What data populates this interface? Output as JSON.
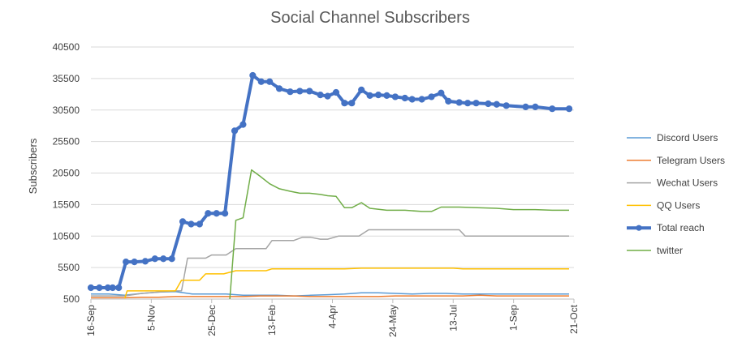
{
  "chart_data": {
    "type": "line",
    "title": "Social Channel Subscribers",
    "ylabel": "Subscribers",
    "xlabel": "",
    "x_tick_labels": [
      "16-Sep",
      "5-Nov",
      "25-Dec",
      "13-Feb",
      "4-Apr",
      "24-May",
      "13-Jul",
      "1-Sep",
      "21-Oct"
    ],
    "y_tick_labels": [
      "500",
      "5500",
      "10500",
      "15500",
      "20500",
      "25500",
      "30500",
      "35500",
      "40500"
    ],
    "xlim_days": [
      0,
      400
    ],
    "ylim": [
      500,
      40500
    ],
    "legend_position": "right",
    "series": [
      {
        "name": "Discord Users",
        "color": "#5b9bd5",
        "width": 1.5,
        "markers": false,
        "points": [
          [
            0,
            1300
          ],
          [
            15,
            1300
          ],
          [
            28,
            1100
          ],
          [
            42,
            1400
          ],
          [
            56,
            1600
          ],
          [
            70,
            1700
          ],
          [
            84,
            1300
          ],
          [
            98,
            1300
          ],
          [
            112,
            1300
          ],
          [
            126,
            1100
          ],
          [
            140,
            1100
          ],
          [
            154,
            1100
          ],
          [
            168,
            1000
          ],
          [
            182,
            1100
          ],
          [
            196,
            1200
          ],
          [
            210,
            1300
          ],
          [
            224,
            1500
          ],
          [
            238,
            1500
          ],
          [
            252,
            1400
          ],
          [
            266,
            1300
          ],
          [
            280,
            1400
          ],
          [
            294,
            1400
          ],
          [
            308,
            1300
          ],
          [
            322,
            1300
          ],
          [
            336,
            1300
          ],
          [
            350,
            1300
          ],
          [
            364,
            1300
          ],
          [
            378,
            1300
          ],
          [
            396,
            1300
          ]
        ]
      },
      {
        "name": "Telegram Users",
        "color": "#ed7d31",
        "width": 1.5,
        "markers": false,
        "points": [
          [
            0,
            700
          ],
          [
            28,
            700
          ],
          [
            42,
            800
          ],
          [
            56,
            800
          ],
          [
            70,
            900
          ],
          [
            84,
            900
          ],
          [
            98,
            900
          ],
          [
            112,
            900
          ],
          [
            126,
            900
          ],
          [
            140,
            1000
          ],
          [
            154,
            1000
          ],
          [
            168,
            1000
          ],
          [
            182,
            900
          ],
          [
            196,
            900
          ],
          [
            210,
            900
          ],
          [
            224,
            900
          ],
          [
            238,
            900
          ],
          [
            252,
            1000
          ],
          [
            266,
            1000
          ],
          [
            280,
            1000
          ],
          [
            294,
            1000
          ],
          [
            308,
            1000
          ],
          [
            322,
            1100
          ],
          [
            336,
            1000
          ],
          [
            350,
            1000
          ],
          [
            364,
            1000
          ],
          [
            378,
            1000
          ],
          [
            396,
            1000
          ]
        ]
      },
      {
        "name": "Wechat Users",
        "color": "#a5a5a5",
        "width": 1.5,
        "markers": false,
        "points": [
          [
            0,
            1000
          ],
          [
            28,
            1000
          ],
          [
            42,
            1400
          ],
          [
            56,
            1600
          ],
          [
            70,
            1800
          ],
          [
            75,
            1800
          ],
          [
            80,
            7000
          ],
          [
            88,
            7000
          ],
          [
            95,
            7000
          ],
          [
            100,
            7500
          ],
          [
            112,
            7500
          ],
          [
            120,
            8500
          ],
          [
            130,
            8500
          ],
          [
            145,
            8500
          ],
          [
            150,
            9800
          ],
          [
            168,
            9800
          ],
          [
            175,
            10300
          ],
          [
            182,
            10300
          ],
          [
            190,
            10000
          ],
          [
            196,
            10000
          ],
          [
            205,
            10500
          ],
          [
            222,
            10500
          ],
          [
            230,
            11500
          ],
          [
            252,
            11500
          ],
          [
            290,
            11500
          ],
          [
            305,
            11500
          ],
          [
            310,
            10500
          ],
          [
            330,
            10500
          ],
          [
            350,
            10500
          ],
          [
            396,
            10500
          ]
        ]
      },
      {
        "name": "QQ Users",
        "color": "#ffc000",
        "width": 1.5,
        "markers": false,
        "points": [
          [
            28,
            600
          ],
          [
            30,
            1800
          ],
          [
            42,
            1800
          ],
          [
            56,
            1800
          ],
          [
            70,
            1800
          ],
          [
            75,
            3500
          ],
          [
            84,
            3500
          ],
          [
            90,
            3500
          ],
          [
            95,
            4500
          ],
          [
            110,
            4500
          ],
          [
            120,
            5000
          ],
          [
            145,
            5000
          ],
          [
            150,
            5300
          ],
          [
            168,
            5300
          ],
          [
            182,
            5300
          ],
          [
            196,
            5300
          ],
          [
            210,
            5300
          ],
          [
            224,
            5400
          ],
          [
            252,
            5400
          ],
          [
            280,
            5400
          ],
          [
            300,
            5400
          ],
          [
            308,
            5300
          ],
          [
            322,
            5300
          ],
          [
            336,
            5300
          ],
          [
            350,
            5300
          ],
          [
            364,
            5300
          ],
          [
            378,
            5300
          ],
          [
            396,
            5300
          ]
        ]
      },
      {
        "name": "Total reach",
        "color": "#4472c4",
        "width": 4,
        "markers": true,
        "points": [
          [
            0,
            2300
          ],
          [
            7,
            2300
          ],
          [
            14,
            2300
          ],
          [
            18,
            2300
          ],
          [
            23,
            2300
          ],
          [
            29,
            6400
          ],
          [
            36,
            6400
          ],
          [
            45,
            6500
          ],
          [
            53,
            6900
          ],
          [
            60,
            6900
          ],
          [
            67,
            6900
          ],
          [
            76,
            12800
          ],
          [
            83,
            12400
          ],
          [
            90,
            12400
          ],
          [
            97,
            14100
          ],
          [
            104,
            14100
          ],
          [
            111,
            14100
          ],
          [
            119,
            27200
          ],
          [
            126,
            28200
          ],
          [
            134,
            36000
          ],
          [
            141,
            35000
          ],
          [
            148,
            35000
          ],
          [
            156,
            33900
          ],
          [
            165,
            33400
          ],
          [
            173,
            33500
          ],
          [
            181,
            33500
          ],
          [
            190,
            32900
          ],
          [
            196,
            32700
          ],
          [
            203,
            33300
          ],
          [
            210,
            31600
          ],
          [
            216,
            31600
          ],
          [
            224,
            33700
          ],
          [
            231,
            32800
          ],
          [
            238,
            32900
          ],
          [
            245,
            32800
          ],
          [
            252,
            32600
          ],
          [
            260,
            32400
          ],
          [
            266,
            32200
          ],
          [
            274,
            32200
          ],
          [
            282,
            32600
          ],
          [
            290,
            33200
          ],
          [
            296,
            31900
          ],
          [
            305,
            31700
          ],
          [
            312,
            31600
          ],
          [
            319,
            31600
          ],
          [
            329,
            31500
          ],
          [
            336,
            31400
          ],
          [
            344,
            31200
          ],
          [
            360,
            31000
          ],
          [
            368,
            31000
          ],
          [
            382,
            30700
          ],
          [
            396,
            30700
          ]
        ]
      },
      {
        "name": "twitter",
        "color": "#70ad47",
        "width": 1.5,
        "markers": false,
        "points": [
          [
            115,
            500
          ],
          [
            120,
            13000
          ],
          [
            126,
            13400
          ],
          [
            133,
            21000
          ],
          [
            140,
            20000
          ],
          [
            148,
            18800
          ],
          [
            156,
            18000
          ],
          [
            165,
            17600
          ],
          [
            173,
            17300
          ],
          [
            181,
            17300
          ],
          [
            190,
            17100
          ],
          [
            196,
            16900
          ],
          [
            203,
            16800
          ],
          [
            210,
            15000
          ],
          [
            216,
            15000
          ],
          [
            224,
            15800
          ],
          [
            231,
            14900
          ],
          [
            245,
            14600
          ],
          [
            260,
            14600
          ],
          [
            274,
            14400
          ],
          [
            282,
            14400
          ],
          [
            290,
            15100
          ],
          [
            305,
            15100
          ],
          [
            320,
            15000
          ],
          [
            336,
            14900
          ],
          [
            350,
            14700
          ],
          [
            368,
            14700
          ],
          [
            382,
            14600
          ],
          [
            396,
            14600
          ]
        ]
      }
    ]
  }
}
